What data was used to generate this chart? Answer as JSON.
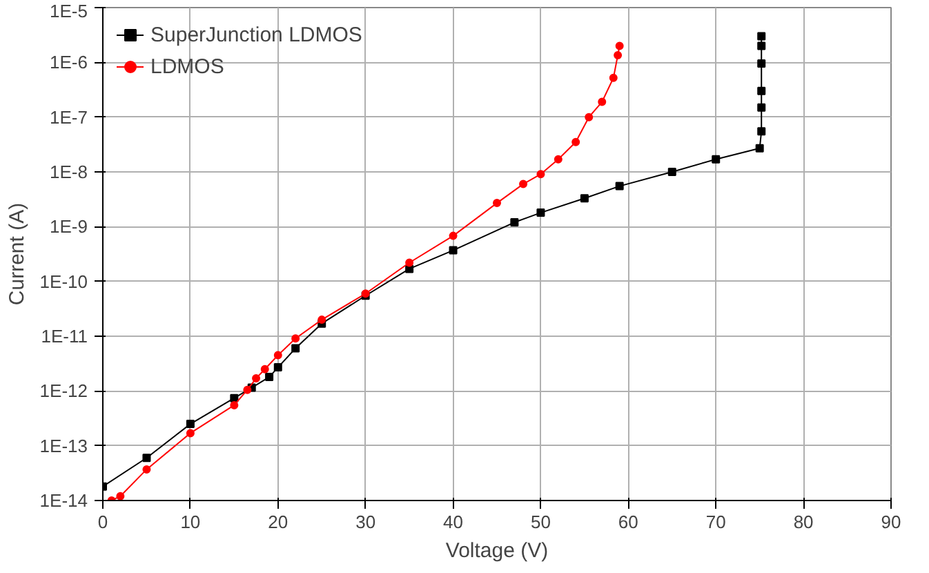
{
  "chart_data": {
    "type": "line",
    "xlabel": "Voltage (V)",
    "ylabel": "Current (A)",
    "log": "y",
    "grid": true,
    "legend": "top left",
    "xlim": [
      0,
      90
    ],
    "xticks": [
      0,
      10,
      20,
      30,
      40,
      50,
      60,
      70,
      80,
      90
    ],
    "ylim": [
      1e-14,
      1e-05
    ],
    "yticks": [
      {
        "value": 1e-14,
        "label": "1E-14"
      },
      {
        "value": 1e-13,
        "label": "1E-13"
      },
      {
        "value": 1e-12,
        "label": "1E-12"
      },
      {
        "value": 1e-11,
        "label": "1E-11"
      },
      {
        "value": 1e-10,
        "label": "1E-10"
      },
      {
        "value": 1e-09,
        "label": "1E-9"
      },
      {
        "value": 1e-08,
        "label": "1E-8"
      },
      {
        "value": 1e-07,
        "label": "1E-7"
      },
      {
        "value": 1e-06,
        "label": "1E-6"
      },
      {
        "value": 1e-05,
        "label": "1E-5"
      }
    ],
    "series": [
      {
        "name": "SuperJunction LDMOS",
        "color": "#000000",
        "marker": "square",
        "x": [
          0,
          5,
          10,
          15,
          17,
          19,
          20,
          22,
          25,
          30,
          35,
          40,
          47,
          50,
          55,
          59,
          65,
          70,
          75,
          75.2,
          75.2,
          75.2,
          75.2,
          75.2,
          75.2
        ],
        "values": [
          1.8e-14,
          6e-14,
          2.5e-13,
          7.4e-13,
          1.15e-12,
          1.8e-12,
          2.7e-12,
          6e-12,
          1.7e-11,
          5.5e-11,
          1.7e-10,
          3.7e-10,
          1.2e-09,
          1.8e-09,
          3.3e-09,
          5.5e-09,
          1e-08,
          1.7e-08,
          2.7e-08,
          5.5e-08,
          1.5e-07,
          3e-07,
          9.5e-07,
          2e-06,
          3e-06
        ]
      },
      {
        "name": "LDMOS",
        "color": "#ff0000",
        "marker": "circle",
        "x": [
          1,
          2,
          5,
          10,
          15,
          16.5,
          17.5,
          18.5,
          20,
          22,
          25,
          30,
          35,
          40,
          45,
          48,
          50,
          52,
          54,
          55.5,
          57,
          58.3,
          58.8,
          59
        ],
        "values": [
          1e-14,
          1.2e-14,
          3.7e-14,
          1.7e-13,
          5.5e-13,
          1.05e-12,
          1.7e-12,
          2.5e-12,
          4.5e-12,
          9.1e-12,
          2e-11,
          6e-11,
          2.2e-10,
          6.8e-10,
          2.7e-09,
          6e-09,
          9.1e-09,
          1.7e-08,
          3.5e-08,
          1e-07,
          1.9e-07,
          5.2e-07,
          1.35e-06,
          2e-06
        ]
      }
    ]
  }
}
